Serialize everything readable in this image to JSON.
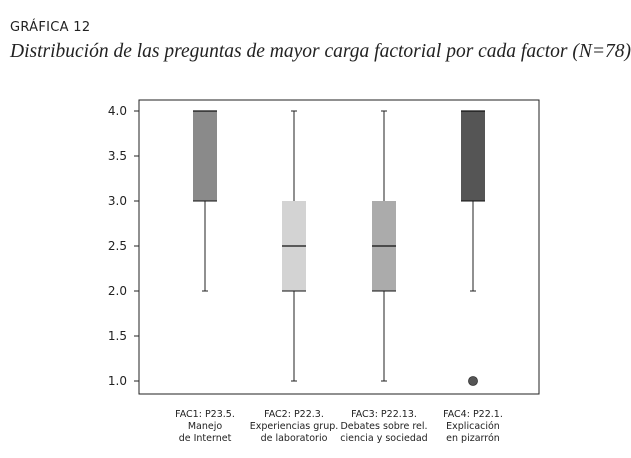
{
  "heading": "GRÁFICA 12",
  "subtitle": "Distribución de las preguntas de mayor carga factorial por cada factor (N=78)",
  "chart_data": {
    "type": "boxplot",
    "title": "Distribución de las preguntas de mayor carga factorial por cada factor (N=78)",
    "ylim": [
      0.9,
      4.1
    ],
    "yticks": [
      "1.0",
      "1.5",
      "2.0",
      "2.5",
      "3.0",
      "3.5",
      "4.0"
    ],
    "grid": false,
    "series": [
      {
        "name": "FAC1",
        "label_lines": [
          "FAC1: P23.5.",
          "Manejo",
          "de Internet"
        ],
        "whisker_low": 2.0,
        "q1": 3.0,
        "median": 4.0,
        "q3": 4.0,
        "whisker_high": 4.0,
        "outliers": [],
        "color": "#8a8a8a"
      },
      {
        "name": "FAC2",
        "label_lines": [
          "FAC2: P22.3.",
          "Experiencias grup.",
          "de laboratorio"
        ],
        "whisker_low": 1.0,
        "q1": 2.0,
        "median": 2.5,
        "q3": 3.0,
        "whisker_high": 4.0,
        "outliers": [],
        "color": "#d3d3d3"
      },
      {
        "name": "FAC3",
        "label_lines": [
          "FAC3: P22.13.",
          "Debates sobre rel.",
          "ciencia y sociedad"
        ],
        "whisker_low": 1.0,
        "q1": 2.0,
        "median": 2.5,
        "q3": 3.0,
        "whisker_high": 4.0,
        "outliers": [],
        "color": "#ababab"
      },
      {
        "name": "FAC4",
        "label_lines": [
          "FAC4: P22.1.",
          "Explicación",
          "en pizarrón"
        ],
        "whisker_low": 2.0,
        "q1": 3.0,
        "median": 4.0,
        "q3": 4.0,
        "whisker_high": 4.0,
        "outliers": [
          1.0
        ],
        "color": "#555555"
      }
    ]
  }
}
